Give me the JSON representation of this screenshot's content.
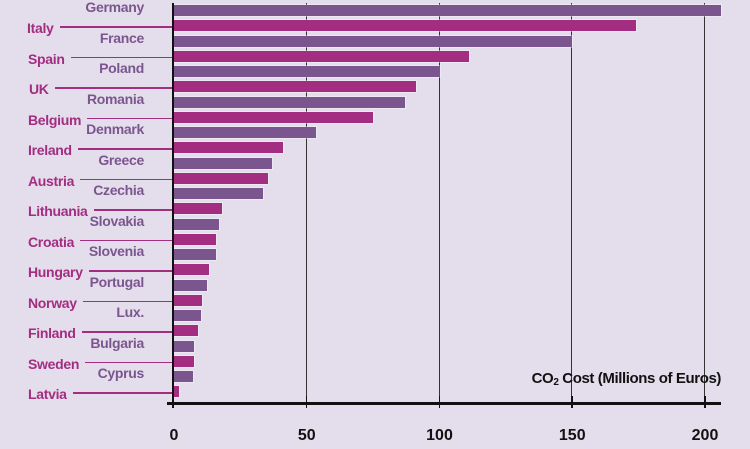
{
  "chart_data": {
    "type": "bar",
    "orientation": "horizontal",
    "title": "",
    "xlabel": "CO2 Cost (Millions of Euros)",
    "xlabel_parts": {
      "pre": "CO",
      "sub": "2",
      "post": " Cost (Millions of Euros)"
    },
    "ylabel": "",
    "xlim": [
      0,
      210
    ],
    "xticks": [
      0,
      50,
      100,
      150,
      200
    ],
    "grid": {
      "vertical": true,
      "horizontal": false
    },
    "legend": null,
    "categories": [
      "Germany",
      "Italy",
      "France",
      "Spain",
      "Poland",
      "UK",
      "Romania",
      "Belgium",
      "Denmark",
      "Ireland",
      "Greece",
      "Austria",
      "Czechia",
      "Lithuania",
      "Slovakia",
      "Croatia",
      "Slovenia",
      "Hungary",
      "Portugal",
      "Norway",
      "Lux.",
      "Finland",
      "Bulgaria",
      "Sweden",
      "Cyprus",
      "Latvia"
    ],
    "values": [
      206,
      174,
      150,
      111,
      100,
      91,
      87,
      75,
      53.5,
      41,
      37,
      35.5,
      33.5,
      18,
      17,
      16,
      16,
      13,
      12.5,
      10.5,
      10,
      9,
      7.5,
      7.5,
      7,
      2
    ],
    "label_style": [
      "right",
      "left",
      "right",
      "left",
      "right",
      "left",
      "right",
      "left",
      "right",
      "left",
      "right",
      "left",
      "right",
      "left",
      "right",
      "left",
      "right",
      "left",
      "right",
      "left",
      "right",
      "left",
      "right",
      "left",
      "right",
      "left"
    ]
  },
  "colors": {
    "background": "#e4ddec",
    "bar_purple": "#7b568e",
    "bar_magenta": "#a32d80",
    "label_purple": "#7b568e",
    "label_magenta": "#a32d80",
    "axis": "#111111"
  }
}
